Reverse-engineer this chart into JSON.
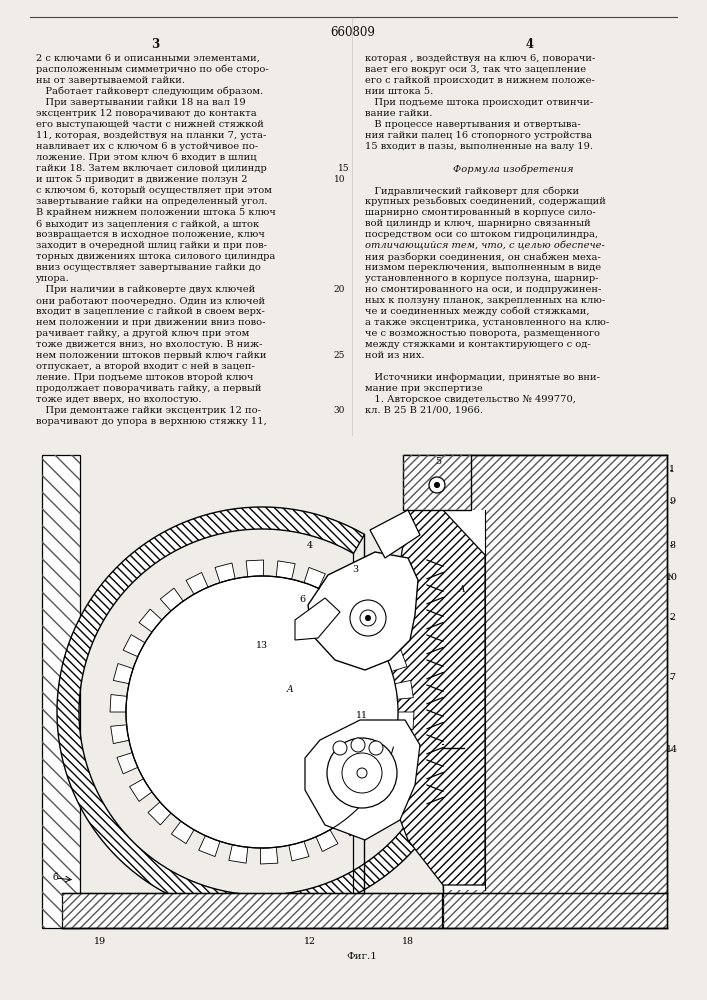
{
  "page_bg": "#f0ede8",
  "patent_number": "660809",
  "col_left_num": "3",
  "col_right_num": "4",
  "left_column_text": [
    "2 с ключами 6 и описанными элементами,",
    "расположенным симметрично по обе сторо-",
    "ны от завертываемой гайки.",
    "   Работает гайковерт следующим образом.",
    "   При завертывании гайки 18 на вал 19",
    "эксцентрик 12 поворачивают до контакта",
    "его выступающей части с нижней стяжкой",
    "11, которая, воздействуя на планки 7, уста-",
    "навливает их с ключом 6 в устойчивое по-",
    "ложение. При этом ключ 6 входит в шлиц",
    "гайки 18. Затем включает силовой цилиндр",
    "и шток 5 приводит в движение ползун 2",
    "с ключом 6, который осуществляет при этом",
    "завертывание гайки на определенный угол.",
    "В крайнем нижнем положении штока 5 ключ",
    "6 выходит из зацепления с гайкой, а шток",
    "возвращается в исходное положение, ключ",
    "заходит в очередной шлиц гайки и при пов-",
    "торных движениях штока силового цилиндра",
    "вниз осуществляет завертывание гайки до",
    "упора.",
    "   При наличии в гайковерте двух ключей",
    "они работают поочередно. Один из ключей",
    "входит в зацепление с гайкой в своем верх-",
    "нем положении и при движении вниз пово-",
    "рачивает гайку, а другой ключ при этом",
    "тоже движется вниз, но вхолостую. В ниж-",
    "нем положении штоков первый ключ гайки",
    "отпускает, а второй входит с ней в зацеп-",
    "ление. При подъеме штоков второй ключ",
    "продолжает поворачивать гайку, а первый",
    "тоже идет вверх, но вхолостую.",
    "   При демонтаже гайки эксцентрик 12 по-",
    "ворачивают до упора в верхнюю стяжку 11,"
  ],
  "left_line_numbers": [
    {
      "line": 12,
      "num": "10"
    },
    {
      "line": 22,
      "num": "20"
    },
    {
      "line": 28,
      "num": "25"
    },
    {
      "line": 33,
      "num": "30"
    }
  ],
  "right_column_text": [
    "которая , воздействуя на ключ 6, поворачи-",
    "вает его вокруг оси 3, так что зацепление",
    "его с гайкой происходит в нижнем положе-",
    "нии штока 5.",
    "   При подъеме штока происходит отвинчи-",
    "вание гайки.",
    "   В процессе навертывания и отвертыва-",
    "ния гайки палец 16 стопорного устройства",
    "15 входит в пазы, выполненные на валу 19.",
    "",
    "      Формула изобретения",
    "",
    "   Гидравлический гайковерт для сборки",
    "крупных резьбовых соединений, содержащий",
    "шарнирно смонтированный в корпусе сило-",
    "вой цилиндр и ключ, шарнирно связанный",
    "посредством оси со штоком гидроцилиндра,",
    "отличающийся тем, что, с целью обеспече-",
    "ния разборки соединения, он снабжен меха-",
    "низмом переключения, выполненным в виде",
    "установленного в корпусе ползуна, шарнир-",
    "но смонтированного на оси, и подпружинен-",
    "ных к ползуну планок, закрепленных на клю-",
    "че и соединенных между собой стяжками,",
    "а также эксцентрика, установленного на клю-",
    "че с возможностью поворота, размещенного",
    "между стяжками и контактирующего с од-",
    "ной из них.",
    "",
    "   Источники информации, принятые во вни-",
    "мание при экспертизе",
    "   1. Авторское свидетельство № 499770,",
    "кл. В 25 В 21/00, 1966."
  ],
  "right_line_numbers": [
    {
      "line": 11,
      "num": "15"
    }
  ],
  "figure_caption": "Фиг.1"
}
